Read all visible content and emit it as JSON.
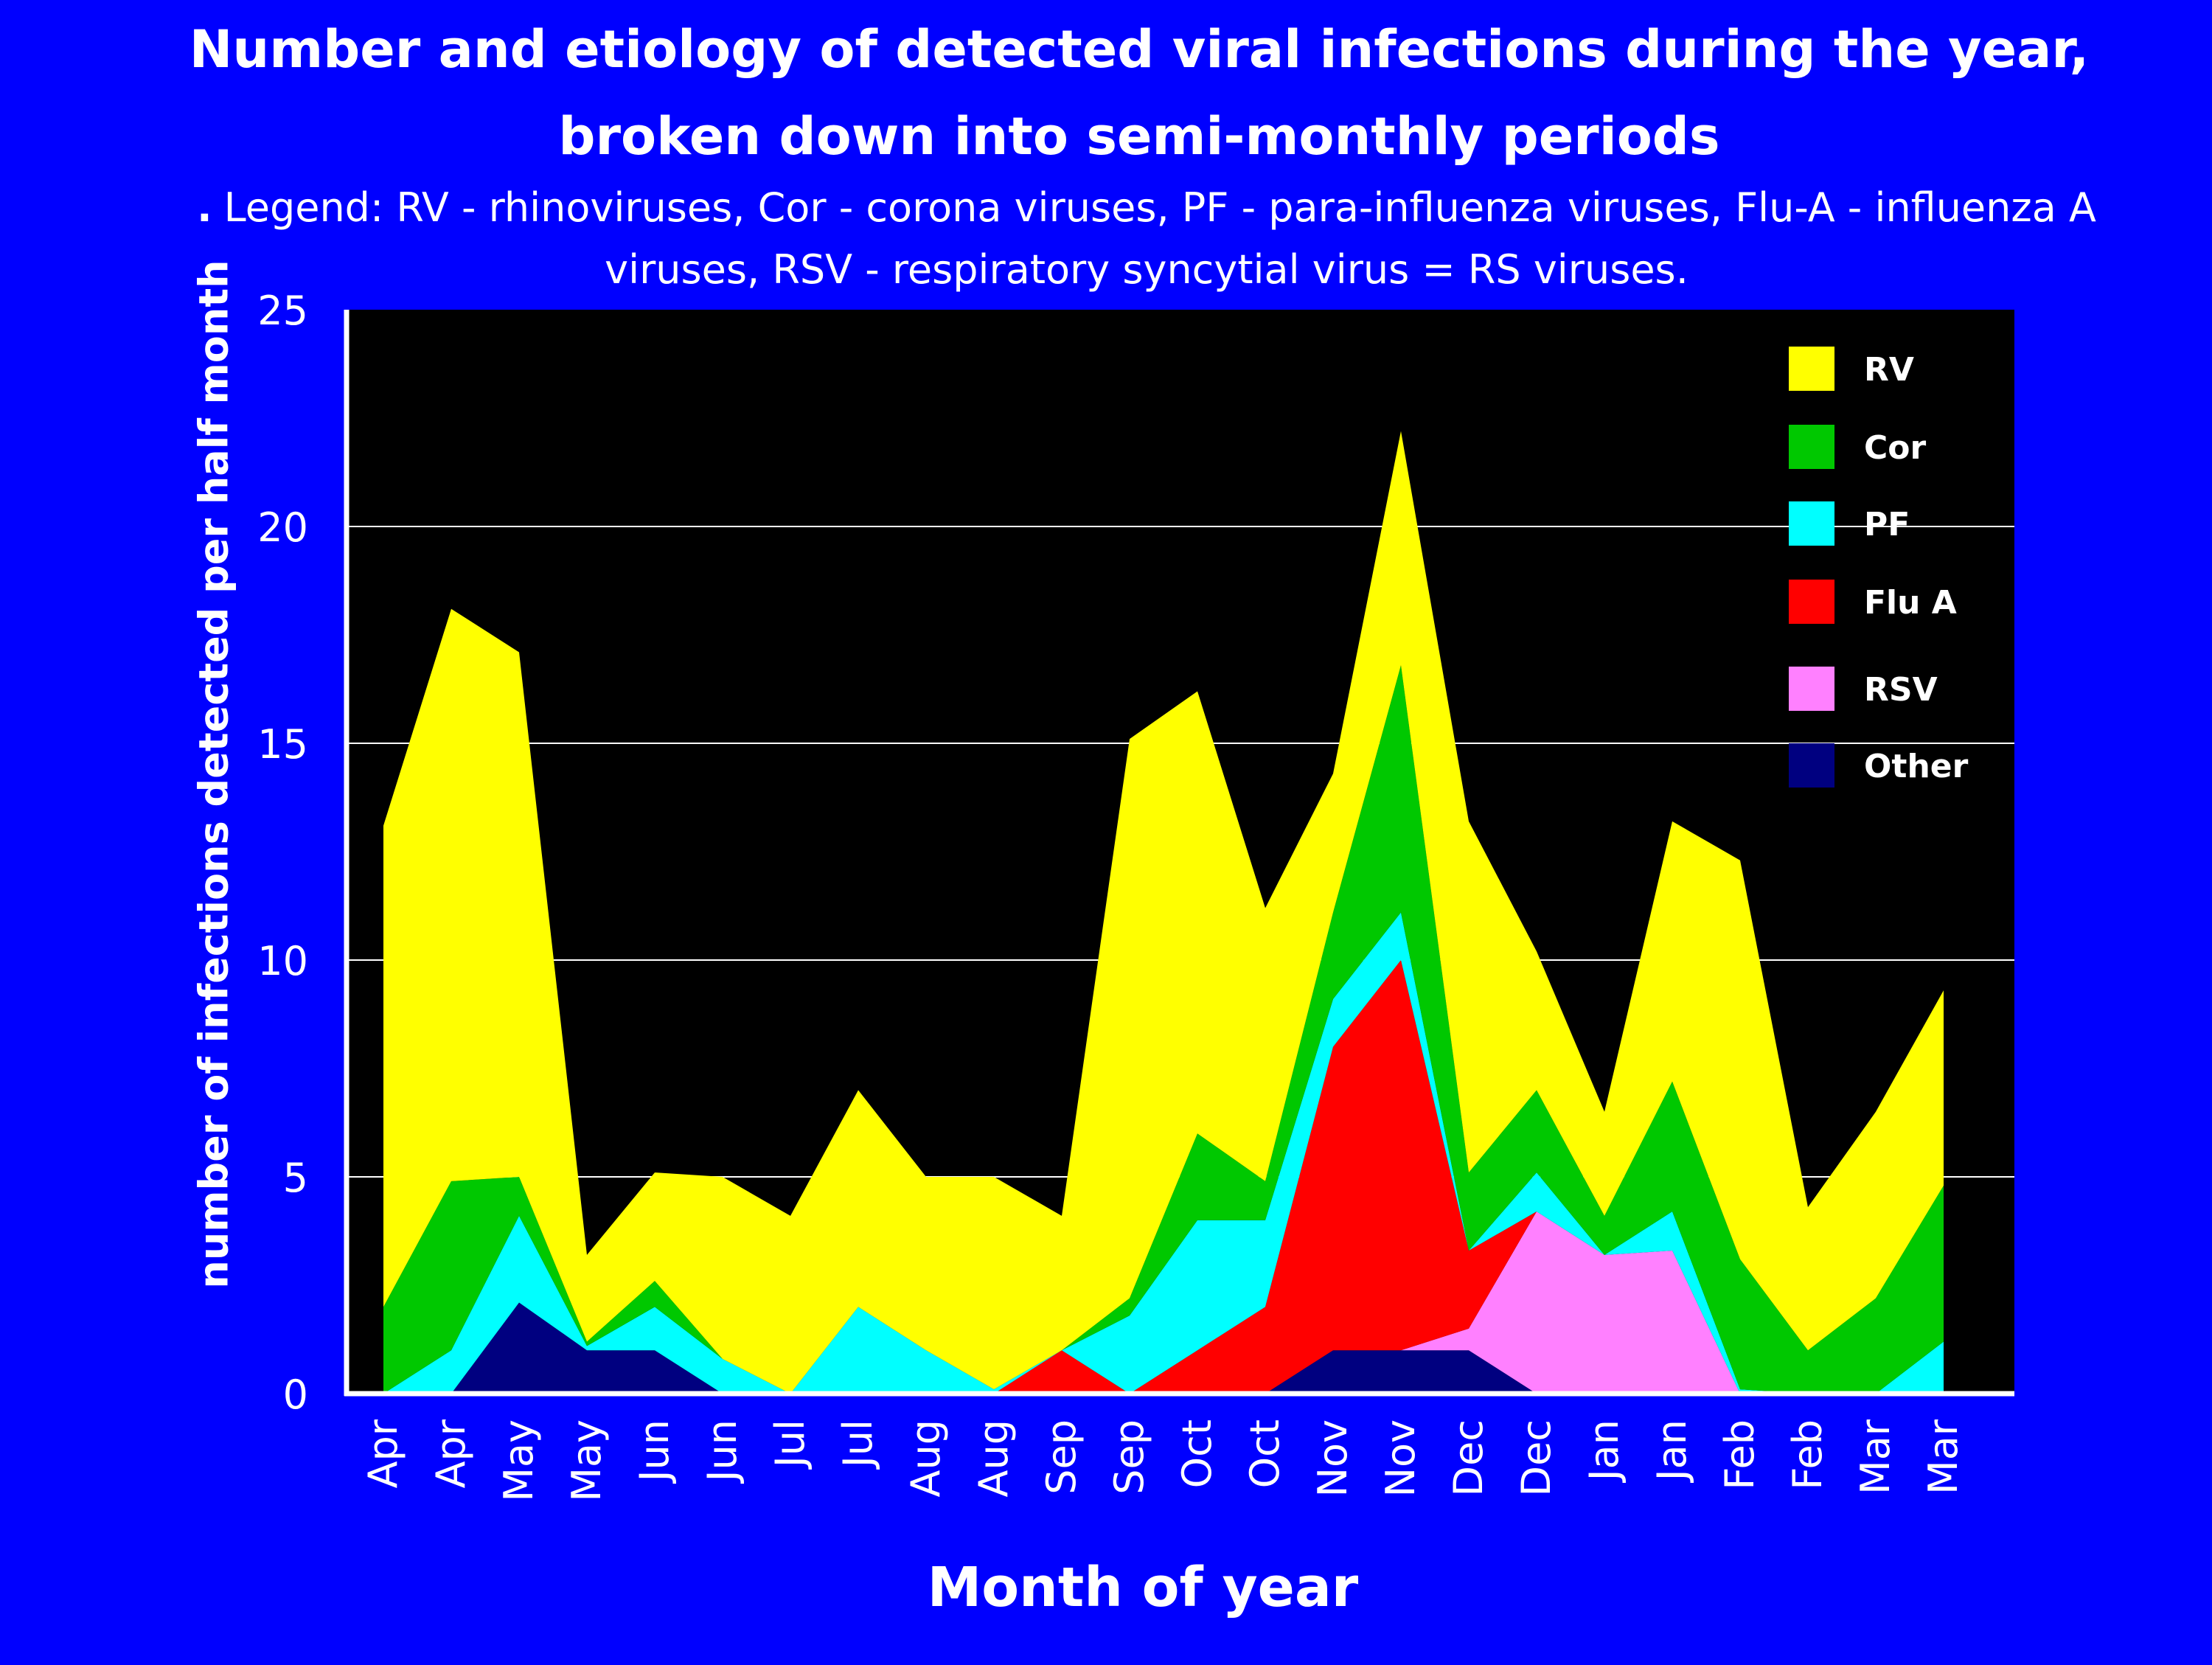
{
  "chart_data": {
    "type": "area",
    "stacked": true,
    "title_line1": "Number and etiology of detected viral infections during the year,",
    "title_line2": "broken down into semi-monthly periods",
    "subtitle_bullet": ".",
    "subtitle": "Legend: RV - rhinoviruses, Cor - corona viruses, PF - para-influenza viruses, Flu-A - influenza A viruses, RSV - respiratory syncytial virus = RS viruses.",
    "xlabel": "Month of year",
    "ylabel": "number of infections detected per half month",
    "ylim": [
      0,
      25
    ],
    "yticks": [
      0,
      5,
      10,
      15,
      20,
      25
    ],
    "grid": true,
    "legend_position": "top-right",
    "categories": [
      "Apr",
      "Apr",
      "May",
      "May",
      "Jun",
      "Jun",
      "Jul",
      "Jul",
      "Aug",
      "Aug",
      "Sep",
      "Sep",
      "Oct",
      "Oct",
      "Nov",
      "Nov",
      "Dec",
      "Dec",
      "Jan",
      "Jan",
      "Feb",
      "Feb",
      "Mar",
      "Mar"
    ],
    "series": [
      {
        "name": "Other",
        "color": "#000080",
        "values": [
          0,
          0,
          2.1,
          1.0,
          1.0,
          0,
          0,
          0,
          0,
          0,
          0,
          0,
          0,
          0,
          1.0,
          1.0,
          1.0,
          0,
          0,
          0,
          0,
          0,
          0,
          0
        ]
      },
      {
        "name": "RSV",
        "color": "#ff80ff",
        "values": [
          0,
          0,
          0,
          0,
          0,
          0,
          0,
          0,
          0,
          0,
          0,
          0,
          0,
          0,
          0,
          0,
          0.5,
          4.2,
          3.2,
          3.3,
          0,
          0,
          0,
          0
        ]
      },
      {
        "name": "Flu A",
        "color": "#ff0000",
        "values": [
          0,
          0,
          0,
          0,
          0,
          0,
          0,
          0,
          0,
          0,
          1.0,
          0,
          1.0,
          2.0,
          7.0,
          9.0,
          1.8,
          0,
          0,
          0,
          0,
          0,
          0,
          0
        ]
      },
      {
        "name": "PF",
        "color": "#00ffff",
        "values": [
          0,
          1.0,
          2.0,
          0.1,
          1.0,
          0.8,
          0,
          2.0,
          1.0,
          0.1,
          0,
          1.8,
          3.0,
          2.0,
          1.1,
          1.1,
          0,
          0.9,
          0,
          0.9,
          0.1,
          0,
          0,
          1.2
        ]
      },
      {
        "name": "Cor",
        "color": "#00c800",
        "values": [
          2.0,
          3.9,
          0.9,
          0.1,
          0.6,
          0,
          0,
          0,
          0,
          0,
          0,
          0.4,
          2.0,
          0.9,
          2.0,
          5.7,
          1.8,
          1.9,
          0.9,
          3.0,
          3.0,
          1.0,
          2.2,
          3.6
        ]
      },
      {
        "name": "RV",
        "color": "#ffff00",
        "values": [
          11.1,
          13.2,
          12.1,
          2.0,
          2.5,
          4.2,
          4.1,
          5.0,
          4.0,
          4.9,
          3.1,
          12.9,
          10.2,
          6.3,
          3.2,
          5.4,
          8.1,
          3.2,
          2.4,
          6.0,
          9.2,
          3.3,
          4.3,
          4.5
        ]
      }
    ]
  }
}
